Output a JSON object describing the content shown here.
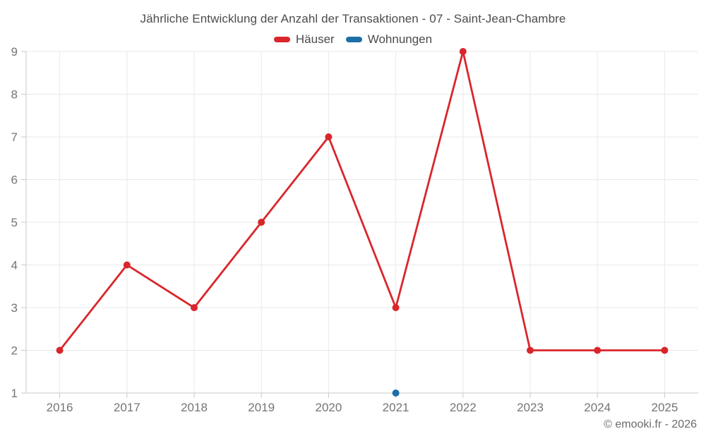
{
  "title": "Jährliche Entwicklung der Anzahl der Transaktionen - 07 - Saint-Jean-Chambre",
  "legend": [
    {
      "label": "Häuser",
      "color": "#d9262b"
    },
    {
      "label": "Wohnungen",
      "color": "#1c6fa6"
    }
  ],
  "footer": "© emooki.fr - 2026",
  "colors": {
    "hauser": "#d9262b",
    "wohnungen": "#1c6fa6",
    "axis": "#c9c9c9",
    "gridline": "#e9e9e9",
    "tick_label": "#757575"
  },
  "chart_data": {
    "type": "line",
    "title": "Jährliche Entwicklung der Anzahl der Transaktionen - 07 - Saint-Jean-Chambre",
    "x": [
      2016,
      2017,
      2018,
      2019,
      2020,
      2021,
      2022,
      2023,
      2024,
      2025
    ],
    "series": [
      {
        "name": "Häuser",
        "color": "#d9262b",
        "values": [
          2,
          4,
          3,
          5,
          7,
          3,
          9,
          2,
          2,
          2
        ]
      },
      {
        "name": "Wohnungen",
        "color": "#1c6fa6",
        "values": [
          null,
          null,
          null,
          null,
          null,
          1,
          null,
          null,
          null,
          null
        ]
      }
    ],
    "xlabel": "",
    "ylabel": "",
    "ylim": [
      1,
      9
    ],
    "yticks": [
      1,
      2,
      3,
      4,
      5,
      6,
      7,
      8,
      9
    ],
    "grid": true,
    "legend_position": "top"
  }
}
